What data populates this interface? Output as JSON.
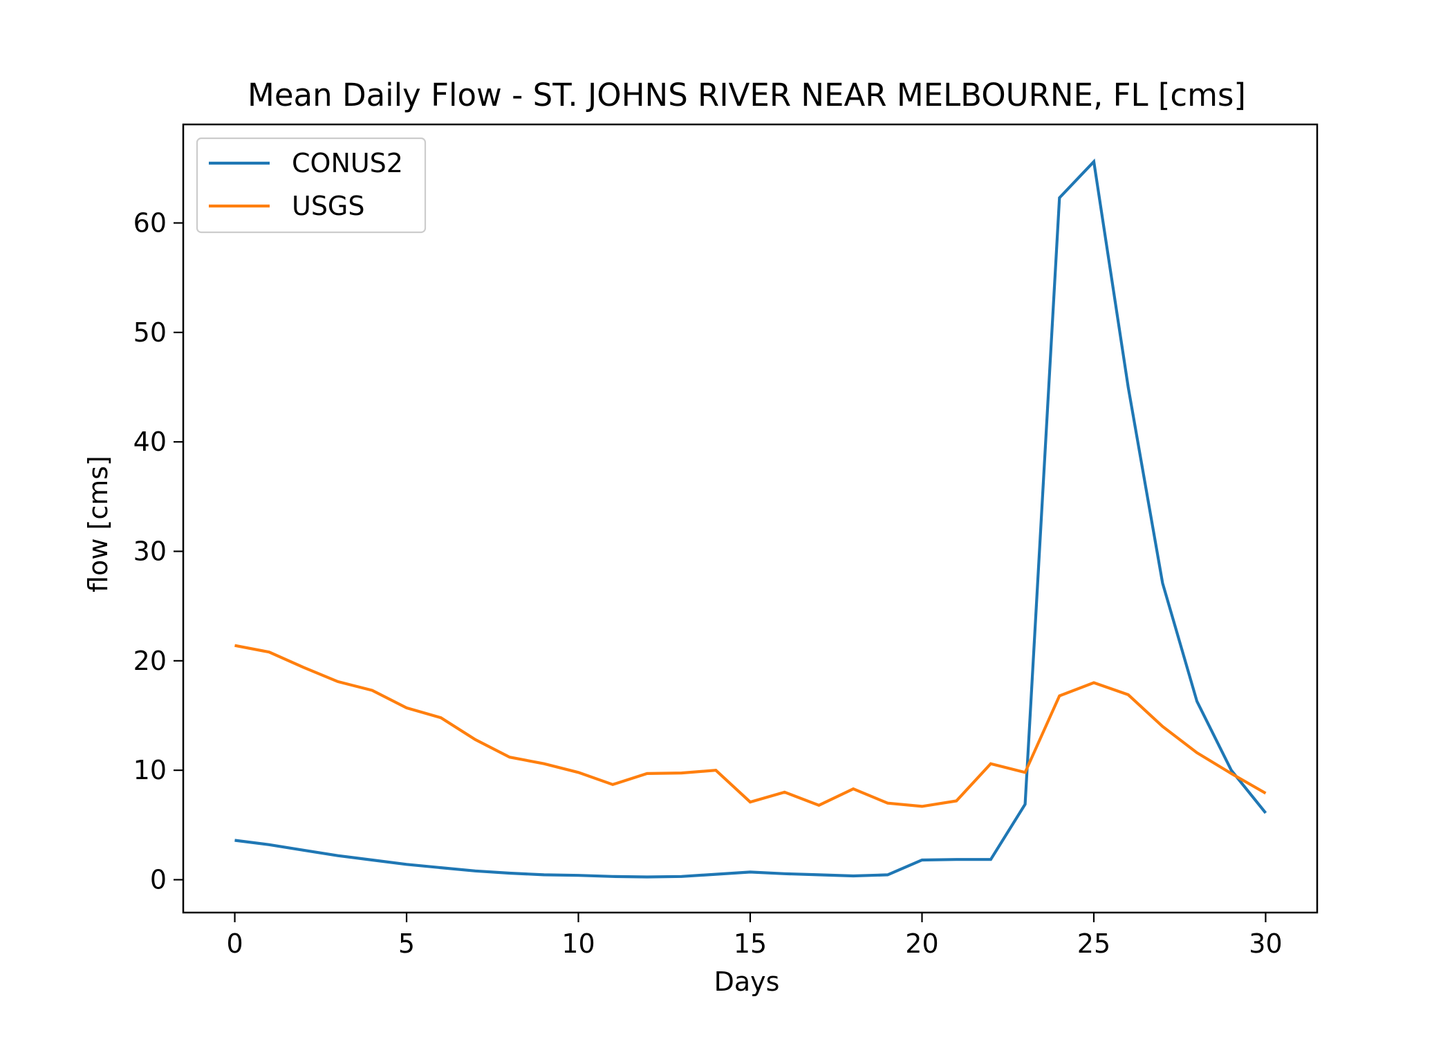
{
  "chart_data": {
    "type": "line",
    "title": "Mean Daily Flow - ST. JOHNS RIVER NEAR MELBOURNE, FL [cms]",
    "xlabel": "Days",
    "ylabel": "flow [cms]",
    "xlim": [
      -1.5,
      31.5
    ],
    "ylim": [
      -3,
      69
    ],
    "xticks": [
      0,
      5,
      10,
      15,
      20,
      25,
      30
    ],
    "yticks": [
      0,
      10,
      20,
      30,
      40,
      50,
      60
    ],
    "grid": false,
    "legend_position": "upper-left",
    "x": [
      0,
      1,
      2,
      3,
      4,
      5,
      6,
      7,
      8,
      9,
      10,
      11,
      12,
      13,
      14,
      15,
      16,
      17,
      18,
      19,
      20,
      21,
      22,
      23,
      24,
      25,
      26,
      27,
      28,
      29,
      30
    ],
    "series": [
      {
        "name": "CONUS2",
        "color": "#1f77b4",
        "values": [
          3.6,
          3.2,
          2.7,
          2.2,
          1.8,
          1.4,
          1.1,
          0.8,
          0.6,
          0.45,
          0.4,
          0.3,
          0.25,
          0.3,
          0.5,
          0.7,
          0.55,
          0.45,
          0.35,
          0.45,
          1.8,
          1.85,
          1.85,
          6.9,
          62.3,
          65.6,
          45.0,
          27.1,
          16.3,
          10.0,
          6.1
        ]
      },
      {
        "name": "USGS",
        "color": "#ff7f0e",
        "values": [
          21.4,
          20.8,
          19.4,
          18.1,
          17.3,
          15.7,
          14.8,
          12.8,
          11.2,
          10.6,
          9.8,
          8.7,
          9.7,
          9.75,
          10.0,
          7.1,
          8.0,
          6.8,
          8.3,
          7.0,
          6.7,
          7.2,
          10.6,
          9.8,
          16.8,
          18.0,
          16.9,
          14.0,
          11.6,
          9.7,
          7.9
        ]
      }
    ]
  }
}
